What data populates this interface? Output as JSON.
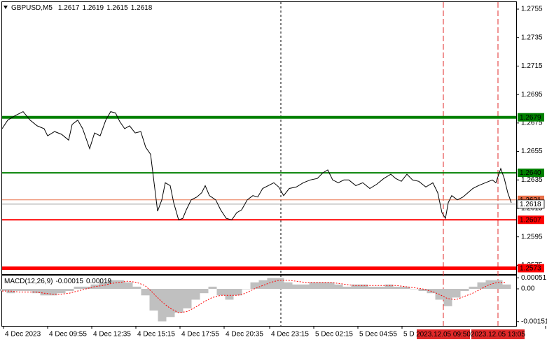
{
  "chart_data": {
    "type": "line",
    "title": "GBPUSD,M5",
    "quote": [
      1.2617,
      1.2619,
      1.2615,
      1.2618
    ],
    "series": [
      {
        "color": "#000000",
        "x": [
          0,
          4,
          9,
          15,
          20,
          25,
          30,
          32.5,
          37.5,
          42.5,
          47.5,
          50,
          54,
          57.5,
          62.5,
          66,
          70,
          74,
          77.5,
          81,
          84,
          87.5,
          91,
          95,
          99,
          102.5,
          106,
          109,
          111,
          114,
          116.5,
          120,
          122.5,
          126,
          129,
          131.5,
          135,
          139,
          142.5,
          145,
          148,
          152.5,
          156,
          160,
          164,
          167.5,
          171,
          175,
          179,
          182.5,
          186,
          190,
          194,
          197.5,
          201,
          205,
          210,
          215,
          220,
          225,
          229,
          232.5,
          236,
          240,
          244,
          247.5,
          252.5,
          257.5,
          262.5,
          267.5,
          272.5,
          277.5,
          281,
          285,
          289,
          293,
          297.5,
          302.5,
          307.5,
          311,
          314,
          316.5,
          318.5,
          321,
          325,
          329,
          332.5,
          336,
          340,
          345,
          350,
          352.5,
          356,
          358.5,
          361,
          363.5
        ],
        "values": [
          1.2671,
          1.2677,
          1.268,
          1.2683,
          1.2677,
          1.2673,
          1.2671,
          1.2666,
          1.2669,
          1.2667,
          1.2663,
          1.2674,
          1.2677,
          1.2671,
          1.2657,
          1.2668,
          1.2666,
          1.2677,
          1.2683,
          1.2682,
          1.2676,
          1.2671,
          1.2673,
          1.2668,
          1.2669,
          1.2658,
          1.2653,
          1.2629,
          1.2613,
          1.2621,
          1.2633,
          1.2631,
          1.2619,
          1.2607,
          1.2608,
          1.2614,
          1.2621,
          1.2623,
          1.2626,
          1.2631,
          1.2624,
          1.2621,
          1.2614,
          1.2608,
          1.2607,
          1.2612,
          1.2614,
          1.2621,
          1.2624,
          1.2623,
          1.2629,
          1.2631,
          1.2633,
          1.263,
          1.2624,
          1.2629,
          1.263,
          1.2633,
          1.2635,
          1.2636,
          1.264,
          1.2642,
          1.2635,
          1.2633,
          1.2635,
          1.2635,
          1.2631,
          1.2633,
          1.2629,
          1.2632,
          1.2636,
          1.2639,
          1.2636,
          1.2634,
          1.2639,
          1.2635,
          1.2634,
          1.263,
          1.2633,
          1.2626,
          1.2612,
          1.2608,
          1.2619,
          1.2624,
          1.2621,
          1.2623,
          1.2626,
          1.2629,
          1.2631,
          1.2633,
          1.2635,
          1.2633,
          1.2643,
          1.2636,
          1.2626,
          1.2619
        ]
      }
    ],
    "xlim": [
      0,
      367
    ],
    "ylim": [
      1.25688,
      1.27614
    ],
    "yticks": [
      1.2755,
      1.2735,
      1.2715,
      1.2695,
      1.2675,
      1.2655,
      1.2635,
      1.2615,
      1.2595,
      1.2575
    ],
    "xticks": [
      {
        "value": 1,
        "label": "4 Dec 2023"
      },
      {
        "value": 32.5,
        "label": "4 Dec 09:55"
      },
      {
        "value": 64,
        "label": "4 Dec 12:35"
      },
      {
        "value": 95.5,
        "label": "4 Dec 15:15"
      },
      {
        "value": 127,
        "label": "4 Dec 17:55"
      },
      {
        "value": 158.5,
        "label": "4 Dec 20:35"
      },
      {
        "value": 191,
        "label": "4 Dec 23:15"
      },
      {
        "value": 222.5,
        "label": "5 Dec 02:15"
      },
      {
        "value": 254,
        "label": "5 Dec 04:55"
      },
      {
        "value": 285.5,
        "label": "5 D"
      },
      {
        "value": 388,
        "label": "5"
      }
    ],
    "levels": [
      {
        "value": 1.2679,
        "color": "#008000",
        "width": 4
      },
      {
        "value": 1.264,
        "label": "1.2640",
        "color": "#008000",
        "width": 2
      },
      {
        "value": 1.2607,
        "color": "#ff0000",
        "width": 2
      },
      {
        "value": 1.2573,
        "color": "#ff0000",
        "width": 5
      },
      {
        "value": 1.2621,
        "color": "#e8704a",
        "width": 1
      }
    ],
    "current": {
      "value": 1.2618,
      "color": "#a0a0a0"
    },
    "vlines": [
      {
        "value": 199,
        "color": "#000000"
      },
      {
        "value": 315,
        "label": "2023.12.05 09:50",
        "color": "#e02828"
      },
      {
        "value": 354,
        "label": "2023.12.05 13:05",
        "color": "#e02828"
      }
    ],
    "indicator": {
      "type": "macd",
      "title": "MACD(12,26,9)",
      "readout": [
        -0.00015,
        0.00019
      ],
      "ylim": [
        -0.00171,
        0.000645
      ],
      "yticks": [
        0.00051,
        {
          "value": 0,
          "label": "0.00"
        },
        -0.00151
      ],
      "histogram": {
        "color": "#c0c0c0",
        "values": [
          -0.0001,
          -0.0002,
          -0.0001,
          -0.0001,
          -0.0002,
          -0.0003,
          -0.0003,
          -0.0002,
          -0.0001,
          0.0001,
          0.0001,
          0.0002,
          0.0003,
          0.0004,
          0.0004,
          0.0003,
          0.0001,
          -0.0003,
          -0.001,
          -0.0015,
          -0.0013,
          -0.0011,
          -0.0009,
          -0.0005,
          -0.0002,
          0.0001,
          -0.0003,
          -0.0005,
          -0.0003,
          0,
          0.0003,
          0.0004,
          0.0005,
          0.0005,
          0.0003,
          0.0002,
          0.0002,
          0.0003,
          0.0003,
          0.0003,
          0.0002,
          0.0001,
          0.0002,
          0.0002,
          0.0001,
          0.0001,
          0.0002,
          0.0001,
          0.0001,
          0,
          -0.0001,
          -0.0002,
          -0.0005,
          -0.0008,
          -0.0004,
          -0.0001,
          0.0001,
          0.0003,
          0.0004,
          0.0004,
          0.0002
        ]
      },
      "signal": {
        "color": "#ff0000",
        "values": [
          -0.0001,
          -0.0001,
          -0.00015,
          -0.00015,
          -0.00015,
          -0.0002,
          -0.00025,
          -0.00025,
          -0.0002,
          -0.0001,
          0,
          0.0001,
          0.00015,
          0.00025,
          0.0003,
          0.00035,
          0.0003,
          0.00015,
          -0.0002,
          -0.0006,
          -0.0009,
          -0.0011,
          -0.00105,
          -0.00085,
          -0.0006,
          -0.0004,
          -0.0003,
          -0.0003,
          -0.0003,
          -0.0002,
          0,
          0.00015,
          0.0003,
          0.0004,
          0.0004,
          0.00035,
          0.0003,
          0.0003,
          0.0003,
          0.0003,
          0.00025,
          0.0002,
          0.00015,
          0.00015,
          0.00015,
          0.00015,
          0.00015,
          0.00015,
          0.0001,
          5e-05,
          0,
          -0.0001,
          -0.00025,
          -0.00045,
          -0.0005,
          -0.00035,
          -0.0002,
          0,
          0.0002,
          0.0003,
          0.0003
        ]
      }
    }
  }
}
